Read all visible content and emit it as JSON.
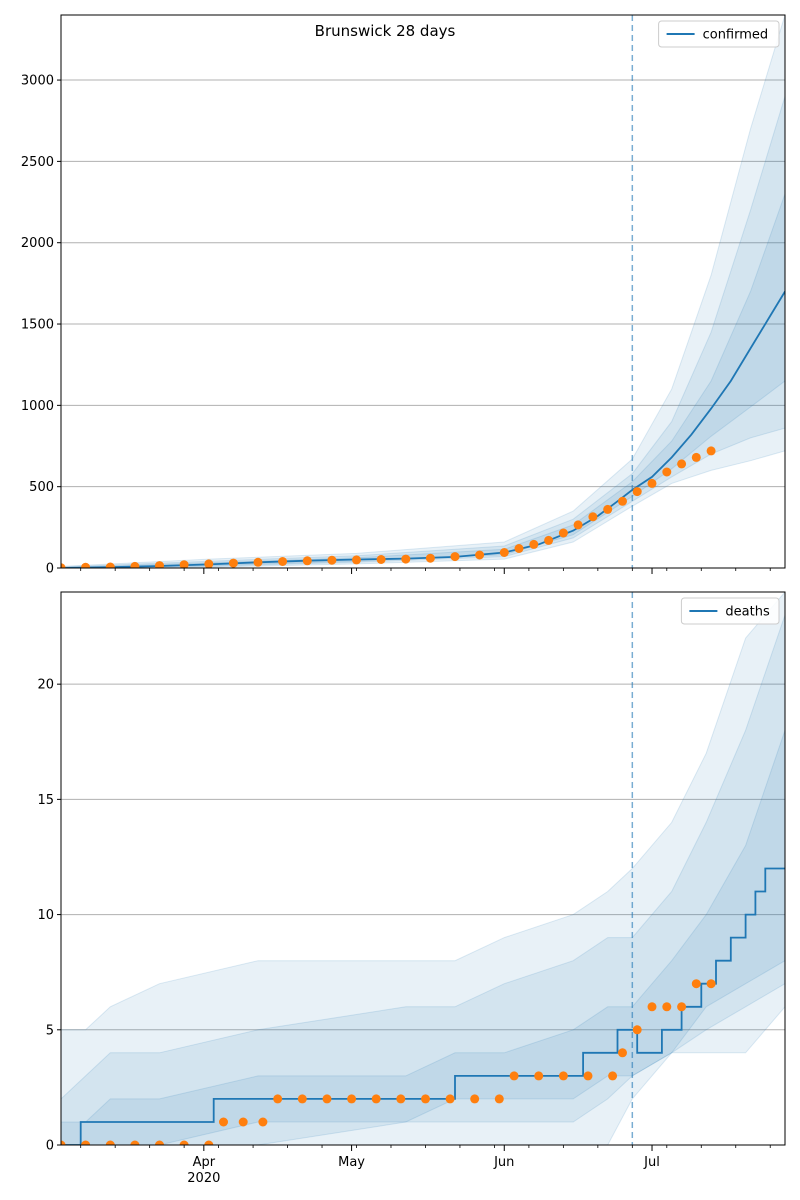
{
  "colors": {
    "forecast": "#1f77b4",
    "observed": "#ff7f0e",
    "grid": "#b0b0b0",
    "band": "#1f77b4"
  },
  "chart_data": [
    {
      "type": "line",
      "title": "Brunswick 28 days",
      "legend": {
        "label": "confirmed",
        "placement": "top-right"
      },
      "xlabel": "",
      "ylabel": "",
      "xlim": [
        "2020-03-03",
        "2020-07-28"
      ],
      "ylim": [
        0,
        3400
      ],
      "yticks": [
        0,
        500,
        1000,
        1500,
        2000,
        2500,
        3000
      ],
      "forecast_start": "2020-06-27",
      "grid": "y-major",
      "forecast_median": {
        "x": [
          "2020-03-03",
          "2020-03-13",
          "2020-03-23",
          "2020-04-02",
          "2020-04-12",
          "2020-04-22",
          "2020-05-02",
          "2020-05-12",
          "2020-05-22",
          "2020-06-01",
          "2020-06-08",
          "2020-06-15",
          "2020-06-20",
          "2020-06-24",
          "2020-06-27",
          "2020-07-01",
          "2020-07-05",
          "2020-07-09",
          "2020-07-13",
          "2020-07-17",
          "2020-07-21",
          "2020-07-25",
          "2020-07-28"
        ],
        "y": [
          0,
          5,
          12,
          22,
          35,
          45,
          52,
          58,
          68,
          95,
          145,
          230,
          320,
          410,
          480,
          560,
          680,
          820,
          980,
          1150,
          1350,
          1550,
          1700
        ]
      },
      "bands": [
        {
          "x": [
            "2020-03-03",
            "2020-04-02",
            "2020-05-02",
            "2020-06-01",
            "2020-06-15",
            "2020-06-27",
            "2020-07-05",
            "2020-07-13",
            "2020-07-21",
            "2020-07-28"
          ],
          "lower": [
            0,
            5,
            25,
            55,
            160,
            380,
            520,
            600,
            660,
            720
          ],
          "upper": [
            10,
            55,
            90,
            160,
            350,
            670,
            1100,
            1800,
            2700,
            3400
          ]
        },
        {
          "x": [
            "2020-03-03",
            "2020-04-02",
            "2020-05-02",
            "2020-06-01",
            "2020-06-15",
            "2020-06-27",
            "2020-07-05",
            "2020-07-13",
            "2020-07-21",
            "2020-07-28"
          ],
          "lower": [
            0,
            10,
            35,
            70,
            185,
            410,
            560,
            700,
            800,
            860
          ],
          "upper": [
            6,
            42,
            75,
            135,
            300,
            580,
            900,
            1450,
            2200,
            2900
          ]
        },
        {
          "x": [
            "2020-03-03",
            "2020-04-02",
            "2020-05-02",
            "2020-06-01",
            "2020-06-15",
            "2020-06-27",
            "2020-07-05",
            "2020-07-13",
            "2020-07-21",
            "2020-07-28"
          ],
          "lower": [
            0,
            15,
            42,
            82,
            205,
            440,
            610,
            810,
            990,
            1150
          ],
          "upper": [
            3,
            32,
            63,
            115,
            265,
            530,
            780,
            1150,
            1700,
            2300
          ]
        }
      ],
      "observed": {
        "x": [
          "2020-03-03",
          "2020-03-08",
          "2020-03-13",
          "2020-03-18",
          "2020-03-23",
          "2020-03-28",
          "2020-04-02",
          "2020-04-07",
          "2020-04-12",
          "2020-04-17",
          "2020-04-22",
          "2020-04-27",
          "2020-05-02",
          "2020-05-07",
          "2020-05-12",
          "2020-05-17",
          "2020-05-22",
          "2020-05-27",
          "2020-06-01",
          "2020-06-04",
          "2020-06-07",
          "2020-06-10",
          "2020-06-13",
          "2020-06-16",
          "2020-06-19",
          "2020-06-22",
          "2020-06-25",
          "2020-06-28",
          "2020-07-01",
          "2020-07-04",
          "2020-07-07",
          "2020-07-10",
          "2020-07-13"
        ],
        "y": [
          2,
          4,
          6,
          10,
          15,
          20,
          25,
          30,
          35,
          40,
          44,
          48,
          50,
          52,
          55,
          60,
          70,
          80,
          95,
          120,
          145,
          170,
          215,
          265,
          315,
          360,
          410,
          470,
          520,
          590,
          640,
          680,
          720
        ]
      }
    },
    {
      "type": "line",
      "title": "",
      "legend": {
        "label": "deaths",
        "placement": "top-right"
      },
      "xlabel": "",
      "ylabel": "",
      "xlim": [
        "2020-03-03",
        "2020-07-28"
      ],
      "ylim": [
        0,
        24
      ],
      "yticks": [
        0,
        5,
        10,
        15,
        20
      ],
      "forecast_start": "2020-06-27",
      "grid": "y-major",
      "xticks": [
        {
          "date": "2020-04-01",
          "label": "Apr",
          "sublabel": "2020"
        },
        {
          "date": "2020-05-01",
          "label": "May",
          "sublabel": ""
        },
        {
          "date": "2020-06-01",
          "label": "Jun",
          "sublabel": ""
        },
        {
          "date": "2020-07-01",
          "label": "Jul",
          "sublabel": ""
        }
      ],
      "forecast_median": {
        "x": [
          "2020-03-03",
          "2020-03-07",
          "2020-03-07",
          "2020-04-03",
          "2020-04-03",
          "2020-05-22",
          "2020-05-22",
          "2020-06-17",
          "2020-06-17",
          "2020-06-24",
          "2020-06-24",
          "2020-06-28",
          "2020-06-28",
          "2020-07-03",
          "2020-07-03",
          "2020-07-07",
          "2020-07-07",
          "2020-07-11",
          "2020-07-11",
          "2020-07-14",
          "2020-07-14",
          "2020-07-17",
          "2020-07-17",
          "2020-07-20",
          "2020-07-20",
          "2020-07-22",
          "2020-07-22",
          "2020-07-24",
          "2020-07-24",
          "2020-07-28"
        ],
        "y": [
          0,
          0,
          1,
          1,
          2,
          2,
          3,
          3,
          4,
          4,
          5,
          5,
          4,
          4,
          5,
          5,
          6,
          6,
          7,
          7,
          8,
          8,
          9,
          9,
          10,
          10,
          11,
          11,
          12,
          12
        ]
      },
      "bands": [
        {
          "x": [
            "2020-03-03",
            "2020-03-08",
            "2020-03-13",
            "2020-03-23",
            "2020-04-12",
            "2020-05-12",
            "2020-05-22",
            "2020-06-01",
            "2020-06-15",
            "2020-06-22",
            "2020-06-27",
            "2020-07-05",
            "2020-07-12",
            "2020-07-20",
            "2020-07-28"
          ],
          "lower": [
            0,
            0,
            0,
            0,
            0,
            0,
            0,
            0,
            0,
            0,
            2,
            4,
            4,
            4,
            6
          ],
          "upper": [
            5,
            5,
            6,
            7,
            8,
            8,
            8,
            9,
            10,
            11,
            12,
            14,
            17,
            22,
            24
          ]
        },
        {
          "x": [
            "2020-03-03",
            "2020-03-08",
            "2020-03-13",
            "2020-03-23",
            "2020-04-12",
            "2020-05-12",
            "2020-05-22",
            "2020-06-01",
            "2020-06-15",
            "2020-06-22",
            "2020-06-27",
            "2020-07-05",
            "2020-07-12",
            "2020-07-20",
            "2020-07-28"
          ],
          "lower": [
            0,
            0,
            0,
            0,
            0,
            1,
            1,
            1,
            1,
            2,
            3,
            4,
            5,
            6,
            7
          ],
          "upper": [
            2,
            3,
            4,
            4,
            5,
            6,
            6,
            7,
            8,
            9,
            9,
            11,
            14,
            18,
            23
          ]
        },
        {
          "x": [
            "2020-03-03",
            "2020-03-08",
            "2020-03-13",
            "2020-03-23",
            "2020-04-12",
            "2020-05-12",
            "2020-05-22",
            "2020-06-01",
            "2020-06-15",
            "2020-06-22",
            "2020-06-27",
            "2020-07-05",
            "2020-07-12",
            "2020-07-20",
            "2020-07-28"
          ],
          "lower": [
            0,
            0,
            0,
            0,
            1,
            1,
            2,
            2,
            2,
            3,
            3,
            4,
            6,
            7,
            8
          ],
          "upper": [
            1,
            1,
            2,
            2,
            3,
            3,
            4,
            4,
            5,
            6,
            6,
            8,
            10,
            13,
            18
          ]
        }
      ],
      "observed": {
        "x": [
          "2020-03-03",
          "2020-03-08",
          "2020-03-13",
          "2020-03-18",
          "2020-03-23",
          "2020-03-28",
          "2020-04-02",
          "2020-04-05",
          "2020-04-09",
          "2020-04-13",
          "2020-04-16",
          "2020-04-21",
          "2020-04-26",
          "2020-05-01",
          "2020-05-06",
          "2020-05-11",
          "2020-05-16",
          "2020-05-21",
          "2020-05-26",
          "2020-05-31",
          "2020-06-03",
          "2020-06-08",
          "2020-06-13",
          "2020-06-18",
          "2020-06-23",
          "2020-06-25",
          "2020-06-28",
          "2020-07-01",
          "2020-07-04",
          "2020-07-07",
          "2020-07-10",
          "2020-07-13"
        ],
        "y": [
          0,
          0,
          0,
          0,
          0,
          0,
          0,
          1,
          1,
          1,
          2,
          2,
          2,
          2,
          2,
          2,
          2,
          2,
          2,
          2,
          3,
          3,
          3,
          3,
          3,
          4,
          5,
          6,
          6,
          6,
          7,
          7
        ]
      }
    }
  ]
}
